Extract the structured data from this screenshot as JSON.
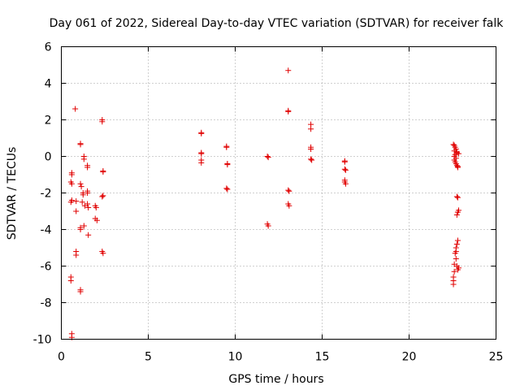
{
  "chart_data": {
    "type": "scatter",
    "title": "Day 061 of 2022, Sidereal Day-to-day VTEC variation (SDTVAR) for receiver falk",
    "xlabel": "GPS time / hours",
    "ylabel": "SDTVAR / TECUs",
    "xlim": [
      0,
      25
    ],
    "ylim": [
      -10,
      6
    ],
    "xticks": [
      0,
      5,
      10,
      15,
      20,
      25
    ],
    "yticks": [
      -10,
      -8,
      -6,
      -4,
      -2,
      0,
      2,
      4,
      6
    ],
    "grid": true,
    "marker": "+",
    "color": "#e00000",
    "series": [
      {
        "name": "SDTVAR",
        "points": [
          [
            0.6,
            -0.9
          ],
          [
            0.6,
            -1.0
          ],
          [
            0.55,
            -1.4
          ],
          [
            0.6,
            -1.5
          ],
          [
            0.6,
            -2.4
          ],
          [
            0.55,
            -2.5
          ],
          [
            0.85,
            -2.45
          ],
          [
            0.8,
            2.6
          ],
          [
            0.85,
            -3.0
          ],
          [
            0.85,
            -5.2
          ],
          [
            0.85,
            -5.4
          ],
          [
            0.55,
            -6.6
          ],
          [
            0.55,
            -6.8
          ],
          [
            0.6,
            -9.7
          ],
          [
            0.6,
            -9.9
          ],
          [
            1.1,
            0.7
          ],
          [
            1.1,
            0.65
          ],
          [
            1.1,
            -1.5
          ],
          [
            1.15,
            -1.65
          ],
          [
            1.25,
            -2.1
          ],
          [
            1.25,
            -2.0
          ],
          [
            1.3,
            0.0
          ],
          [
            1.3,
            -0.15
          ],
          [
            1.2,
            -2.5
          ],
          [
            1.35,
            -2.7
          ],
          [
            1.1,
            -3.9
          ],
          [
            1.1,
            -4.0
          ],
          [
            1.3,
            -3.8
          ],
          [
            1.1,
            -7.3
          ],
          [
            1.1,
            -7.4
          ],
          [
            1.5,
            -0.5
          ],
          [
            1.5,
            -0.6
          ],
          [
            1.5,
            -1.9
          ],
          [
            1.5,
            -2.0
          ],
          [
            1.5,
            -2.6
          ],
          [
            1.55,
            -2.8
          ],
          [
            1.55,
            -4.3
          ],
          [
            1.95,
            -2.7
          ],
          [
            2.0,
            -2.8
          ],
          [
            1.95,
            -3.4
          ],
          [
            2.05,
            -3.5
          ],
          [
            2.35,
            2.0
          ],
          [
            2.35,
            1.9
          ],
          [
            2.4,
            -0.8
          ],
          [
            2.4,
            -0.85
          ],
          [
            2.35,
            -2.2
          ],
          [
            2.4,
            -2.15
          ],
          [
            2.35,
            -5.2
          ],
          [
            2.4,
            -5.3
          ],
          [
            8.05,
            1.3
          ],
          [
            8.05,
            1.25
          ],
          [
            8.05,
            0.2
          ],
          [
            8.05,
            0.15
          ],
          [
            8.05,
            -0.2
          ],
          [
            8.05,
            -0.35
          ],
          [
            9.5,
            0.55
          ],
          [
            9.5,
            0.5
          ],
          [
            9.55,
            -0.4
          ],
          [
            9.55,
            -0.45
          ],
          [
            9.5,
            -1.75
          ],
          [
            9.55,
            -1.8
          ],
          [
            11.85,
            0.0
          ],
          [
            11.9,
            -0.05
          ],
          [
            11.85,
            -3.7
          ],
          [
            11.9,
            -3.8
          ],
          [
            13.05,
            4.7
          ],
          [
            13.05,
            2.5
          ],
          [
            13.05,
            2.45
          ],
          [
            13.05,
            -1.85
          ],
          [
            13.1,
            -1.9
          ],
          [
            13.05,
            -2.6
          ],
          [
            13.1,
            -2.7
          ],
          [
            14.35,
            1.75
          ],
          [
            14.35,
            1.5
          ],
          [
            14.35,
            0.5
          ],
          [
            14.35,
            0.4
          ],
          [
            14.35,
            -0.15
          ],
          [
            14.4,
            -0.2
          ],
          [
            16.3,
            -0.3
          ],
          [
            16.3,
            -0.25
          ],
          [
            16.3,
            -0.7
          ],
          [
            16.35,
            -0.75
          ],
          [
            16.3,
            -1.3
          ],
          [
            16.3,
            -1.4
          ],
          [
            16.35,
            -1.5
          ],
          [
            22.55,
            0.65
          ],
          [
            22.6,
            0.6
          ],
          [
            22.65,
            0.5
          ],
          [
            22.7,
            0.4
          ],
          [
            22.6,
            0.3
          ],
          [
            22.75,
            0.2
          ],
          [
            22.65,
            0.1
          ],
          [
            22.6,
            0.0
          ],
          [
            22.7,
            -0.1
          ],
          [
            22.6,
            -0.2
          ],
          [
            22.65,
            -0.3
          ],
          [
            22.7,
            -0.4
          ],
          [
            22.75,
            -0.5
          ],
          [
            22.8,
            -0.55
          ],
          [
            22.75,
            0.25
          ],
          [
            22.85,
            0.15
          ],
          [
            22.8,
            -0.6
          ],
          [
            22.75,
            -2.2
          ],
          [
            22.8,
            -2.25
          ],
          [
            22.85,
            -2.95
          ],
          [
            22.8,
            -3.05
          ],
          [
            22.75,
            -3.2
          ],
          [
            22.8,
            -4.6
          ],
          [
            22.75,
            -4.8
          ],
          [
            22.7,
            -5.0
          ],
          [
            22.7,
            -5.2
          ],
          [
            22.65,
            -5.3
          ],
          [
            22.7,
            -5.6
          ],
          [
            22.6,
            -5.9
          ],
          [
            22.75,
            -6.0
          ],
          [
            22.85,
            -6.1
          ],
          [
            22.8,
            -6.2
          ],
          [
            22.6,
            -6.3
          ],
          [
            22.55,
            -6.6
          ],
          [
            22.55,
            -6.8
          ],
          [
            22.55,
            -7.0
          ]
        ]
      }
    ]
  }
}
